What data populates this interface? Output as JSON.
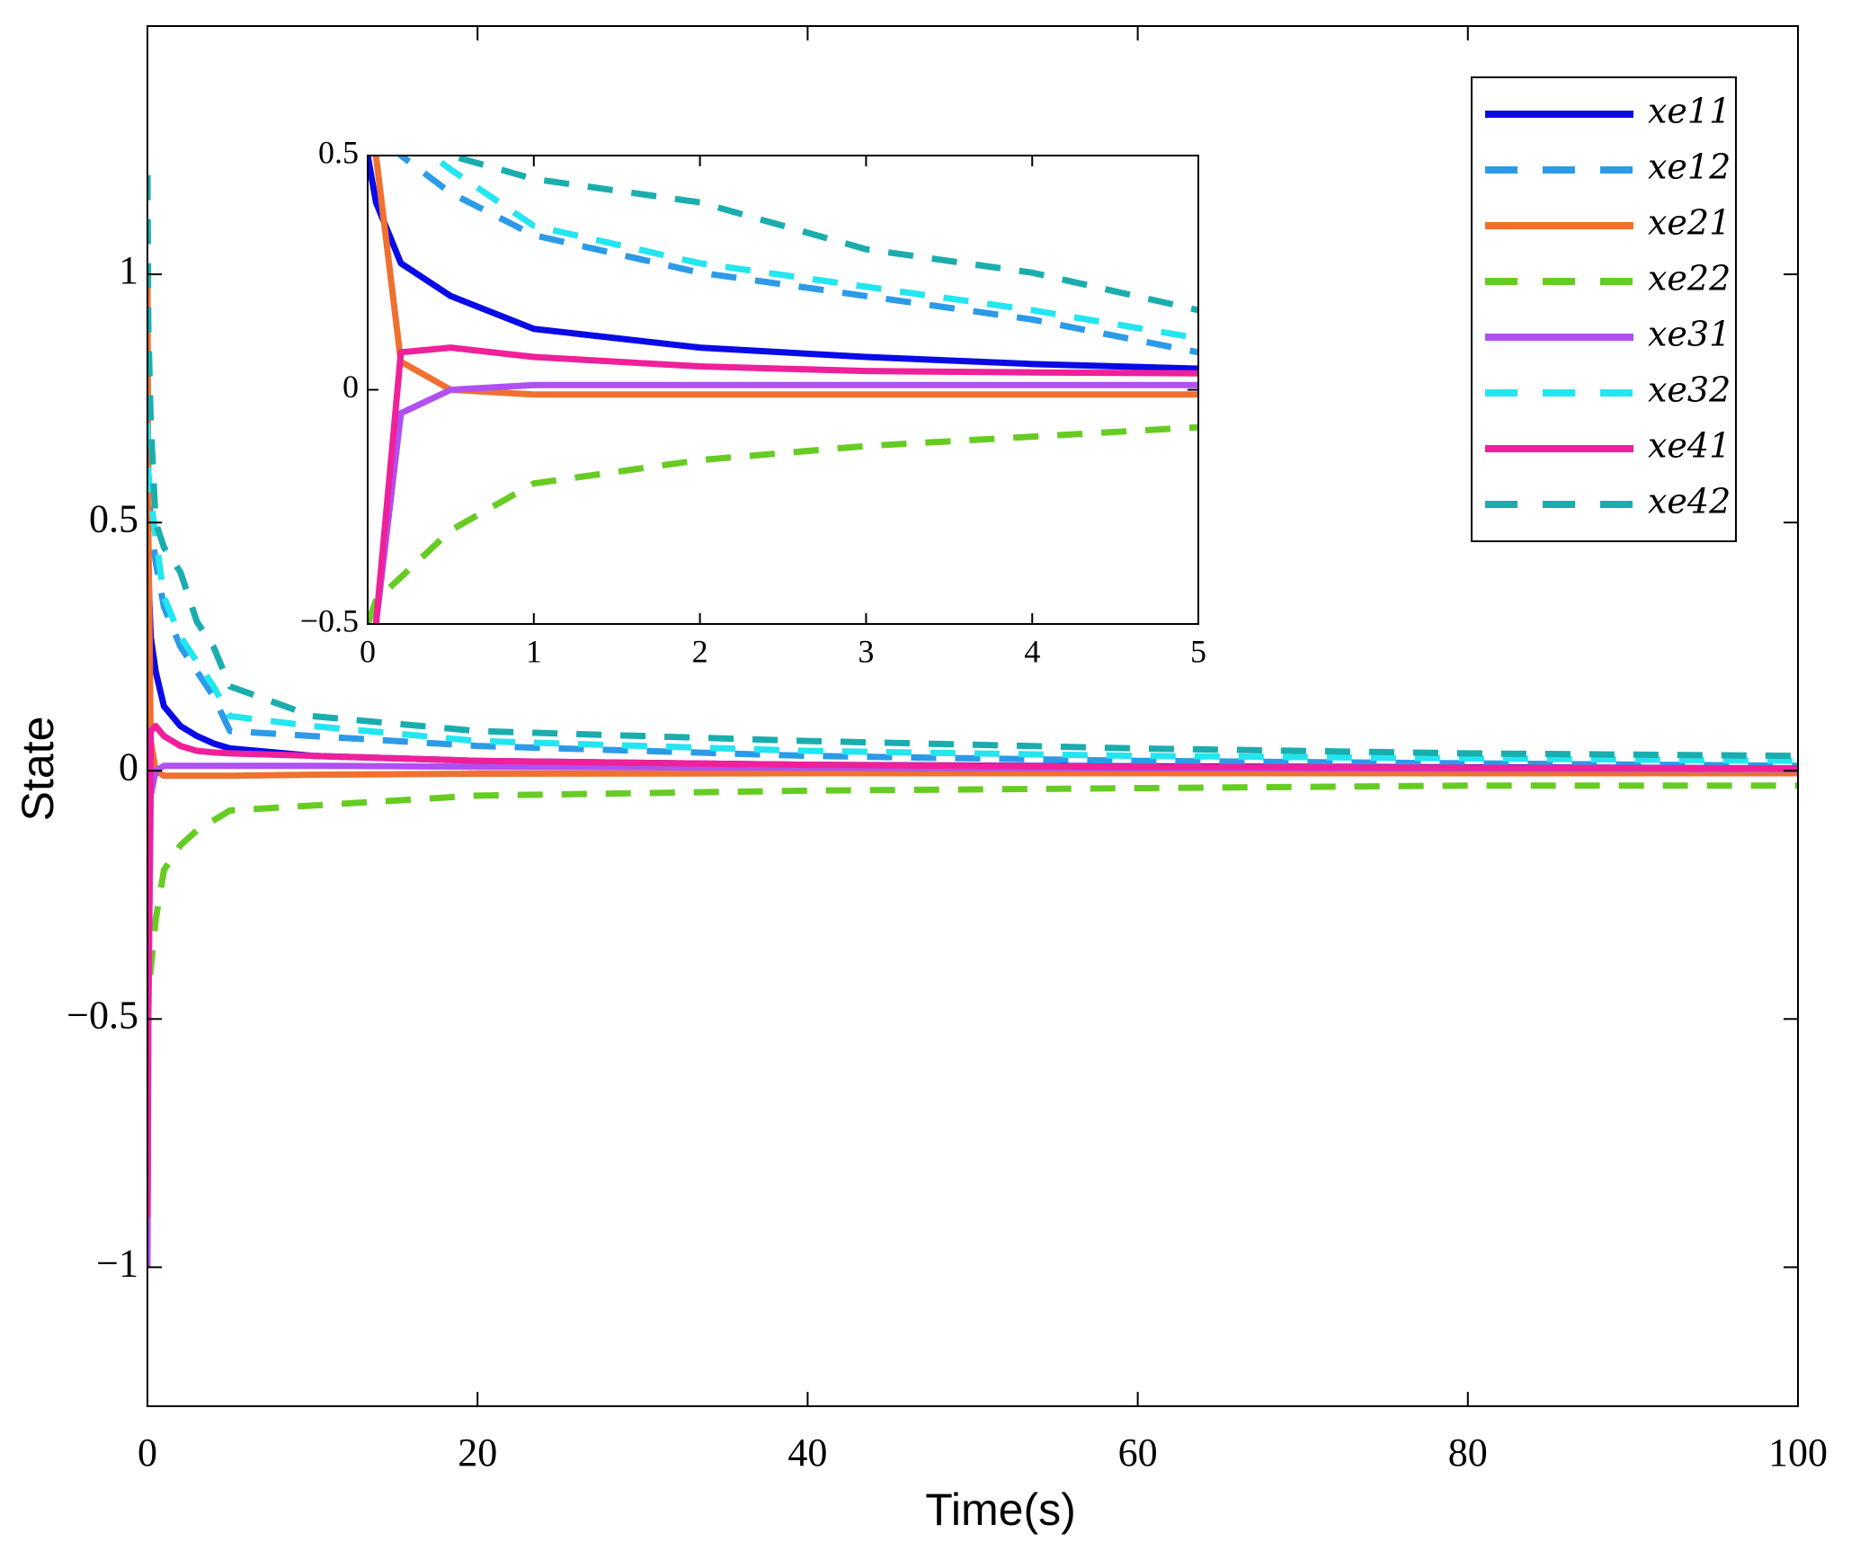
{
  "chart_data": [
    {
      "type": "line",
      "xlabel": "Time(s)",
      "ylabel": "State",
      "xlim": [
        0,
        100
      ],
      "ylim": [
        -1.28,
        1.5
      ],
      "xticks": [
        0,
        20,
        40,
        60,
        80,
        100
      ],
      "yticks": [
        {
          "value": -1,
          "label": "−1"
        },
        {
          "value": -0.5,
          "label": "−0.5"
        },
        0,
        0.5,
        1
      ],
      "legend": "upper right",
      "grid": false,
      "x": [
        0,
        0.05,
        0.2,
        0.5,
        1,
        2,
        3,
        4,
        5,
        10,
        20,
        40,
        60,
        80,
        100
      ],
      "series": [
        {
          "name": "xe11",
          "color": "#0a0ae6",
          "style": "solid",
          "values": [
            0.5,
            0.4,
            0.27,
            0.2,
            0.13,
            0.09,
            0.07,
            0.055,
            0.045,
            0.03,
            0.02,
            0.012,
            0.009,
            0.007,
            0.005
          ]
        },
        {
          "name": "xe12",
          "color": "#2b9be8",
          "style": "dashed",
          "values": [
            0.8,
            0.6,
            0.5,
            0.42,
            0.33,
            0.25,
            0.2,
            0.15,
            0.08,
            0.07,
            0.05,
            0.03,
            0.02,
            0.015,
            0.01
          ]
        },
        {
          "name": "xe21",
          "color": "#f07030",
          "style": "solid",
          "values": [
            1.0,
            0.5,
            0.06,
            0.0,
            -0.01,
            -0.01,
            -0.01,
            -0.01,
            -0.01,
            -0.008,
            -0.006,
            -0.005,
            -0.005,
            -0.005,
            -0.005
          ]
        },
        {
          "name": "xe22",
          "color": "#66cc22",
          "style": "dashed",
          "values": [
            -0.5,
            -0.45,
            -0.4,
            -0.3,
            -0.2,
            -0.15,
            -0.12,
            -0.1,
            -0.08,
            -0.07,
            -0.05,
            -0.04,
            -0.035,
            -0.03,
            -0.03
          ]
        },
        {
          "name": "xe31",
          "color": "#b050f0",
          "style": "solid",
          "values": [
            -1.0,
            -0.5,
            -0.05,
            0.0,
            0.01,
            0.01,
            0.01,
            0.01,
            0.01,
            0.01,
            0.008,
            0.006,
            0.005,
            0.004,
            0.003
          ]
        },
        {
          "name": "xe32",
          "color": "#22e6f0",
          "style": "dashed",
          "values": [
            0.7,
            0.6,
            0.55,
            0.47,
            0.35,
            0.27,
            0.22,
            0.17,
            0.11,
            0.09,
            0.06,
            0.04,
            0.03,
            0.025,
            0.02
          ]
        },
        {
          "name": "xe41",
          "color": "#f0209a",
          "style": "solid",
          "values": [
            -0.9,
            -0.5,
            0.08,
            0.09,
            0.07,
            0.05,
            0.04,
            0.037,
            0.035,
            0.03,
            0.02,
            0.012,
            0.008,
            0.006,
            0.005
          ]
        },
        {
          "name": "xe42",
          "color": "#1aadad",
          "style": "dashed",
          "values": [
            1.2,
            0.9,
            0.7,
            0.5,
            0.45,
            0.4,
            0.3,
            0.25,
            0.17,
            0.11,
            0.08,
            0.06,
            0.045,
            0.035,
            0.03
          ]
        }
      ]
    },
    {
      "type": "line",
      "xlim": [
        0,
        5
      ],
      "ylim": [
        -0.5,
        0.5
      ],
      "xticks": [
        0,
        1,
        2,
        3,
        4,
        5
      ],
      "yticks": [
        {
          "value": -0.5,
          "label": "−0.5"
        },
        0,
        0.5
      ]
    }
  ]
}
